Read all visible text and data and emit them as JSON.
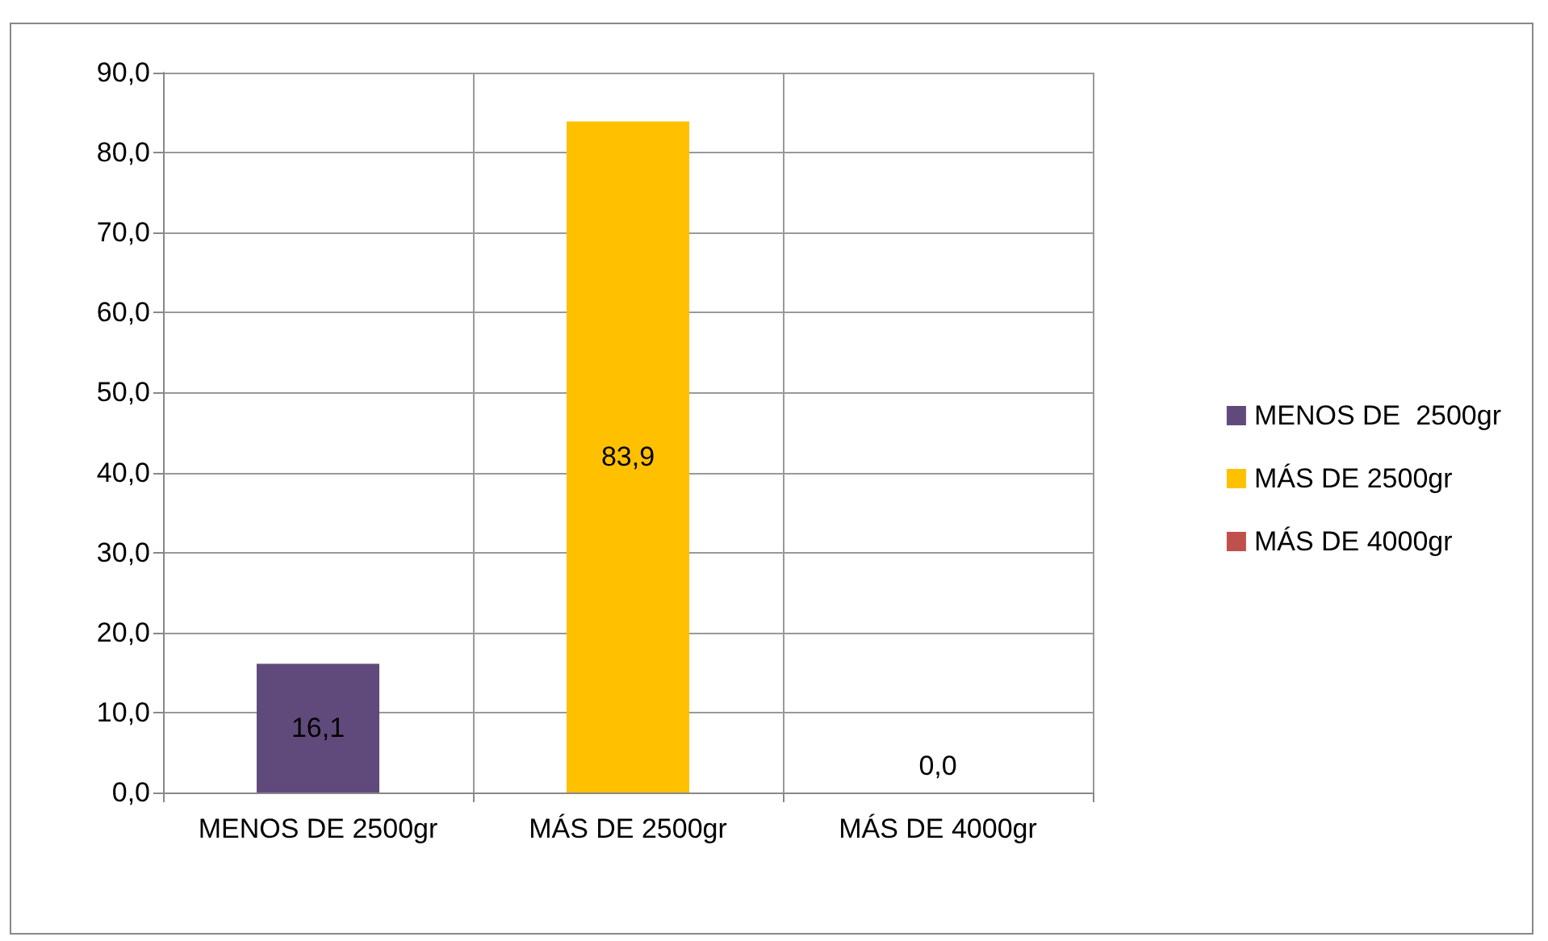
{
  "chart_data": {
    "type": "bar",
    "categories": [
      "MENOS DE 2500gr",
      "MÁS DE 2500gr",
      "MÁS DE 4000gr"
    ],
    "series": [
      {
        "name": "MENOS DE  2500gr",
        "color": "#604a7b",
        "values": [
          16.1,
          null,
          null
        ],
        "value_labels": [
          "16,1",
          null,
          null
        ]
      },
      {
        "name": "MÁS DE 2500gr",
        "color": "#ffc000",
        "values": [
          null,
          83.9,
          null
        ],
        "value_labels": [
          null,
          "83,9",
          null
        ]
      },
      {
        "name": "MÁS DE 4000gr",
        "color": "#c0504d",
        "values": [
          null,
          null,
          0.0
        ],
        "value_labels": [
          null,
          null,
          "0,0"
        ]
      }
    ],
    "ylim": [
      0,
      90
    ],
    "yticks": [
      {
        "value": 0,
        "label": "0,0"
      },
      {
        "value": 10,
        "label": "10,0"
      },
      {
        "value": 20,
        "label": "20,0"
      },
      {
        "value": 30,
        "label": "30,0"
      },
      {
        "value": 40,
        "label": "40,0"
      },
      {
        "value": 50,
        "label": "50,0"
      },
      {
        "value": 60,
        "label": "60,0"
      },
      {
        "value": 70,
        "label": "70,0"
      },
      {
        "value": 80,
        "label": "80,0"
      },
      {
        "value": 90,
        "label": "90,0"
      }
    ],
    "grid": true,
    "legend": "right"
  }
}
